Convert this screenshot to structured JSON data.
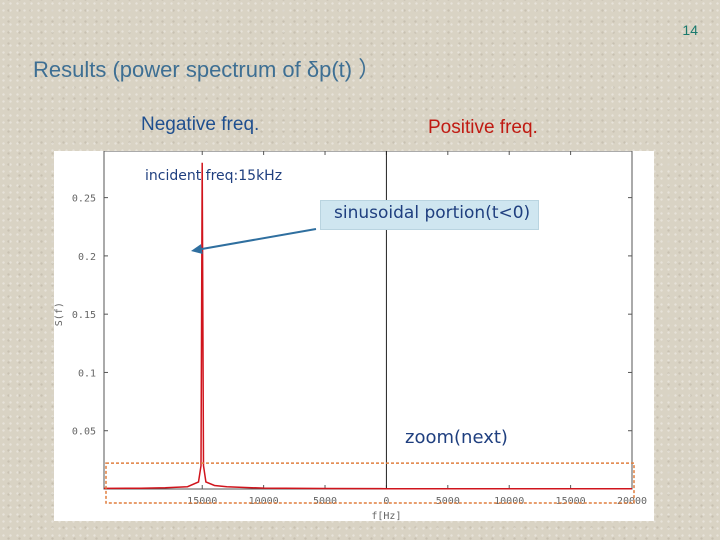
{
  "page_number": "14",
  "slide_title": "Results (power spectrum of δp(t) ）",
  "labels": {
    "negative": "Negative freq.",
    "positive": "Positive freq.",
    "incident": "incident freq:15kHz",
    "sinusoidal": "sinusoidal portion(t<0)",
    "zoom": "zoom(next)"
  },
  "colors": {
    "title": "#3e6f93",
    "negative_label": "#1f4f8f",
    "positive_label": "#c01a12",
    "spectrum_line": "#d0141c",
    "annotation": "#1f3f7f",
    "arrow": "#2f6f9f",
    "zoom_box": "#e07f3f",
    "highlight_box": "#cfe6f0"
  },
  "chart_data": {
    "type": "line",
    "xlabel": "f[Hz]",
    "ylabel": "S(f)",
    "xlim": [
      -23000,
      20000
    ],
    "ylim": [
      0,
      0.29
    ],
    "x_ticks": [
      {
        "value": -15000,
        "label": "15000"
      },
      {
        "value": -10000,
        "label": "10000"
      },
      {
        "value": -5000,
        "label": "5000"
      },
      {
        "value": 0,
        "label": "0"
      },
      {
        "value": 5000,
        "label": "5000"
      },
      {
        "value": 10000,
        "label": "10000"
      },
      {
        "value": 15000,
        "label": "15000"
      },
      {
        "value": 20000,
        "label": "20000"
      }
    ],
    "y_ticks": [
      {
        "value": 0.05,
        "label": "0.05"
      },
      {
        "value": 0.1,
        "label": "0.1"
      },
      {
        "value": 0.15,
        "label": "0.15"
      },
      {
        "value": 0.2,
        "label": "0.2"
      },
      {
        "value": 0.25,
        "label": "0.25"
      }
    ],
    "series": [
      {
        "x": [
          -23000,
          -20000,
          -18000,
          -16200,
          -15300,
          -15100,
          -15000,
          -14900,
          -14700,
          -14000,
          -13000,
          -12000,
          -10000,
          -5000,
          0,
          5000,
          10000,
          15000,
          20000
        ],
        "y": [
          0.0005,
          0.0007,
          0.001,
          0.002,
          0.006,
          0.02,
          0.28,
          0.02,
          0.006,
          0.003,
          0.002,
          0.0015,
          0.0008,
          0.0004,
          0.0003,
          0.0002,
          0.0002,
          0.0002,
          0.0002
        ]
      }
    ],
    "zoom_region": {
      "x": [
        -23000,
        20000
      ],
      "y": [
        0,
        0.017
      ]
    },
    "grid": false
  }
}
